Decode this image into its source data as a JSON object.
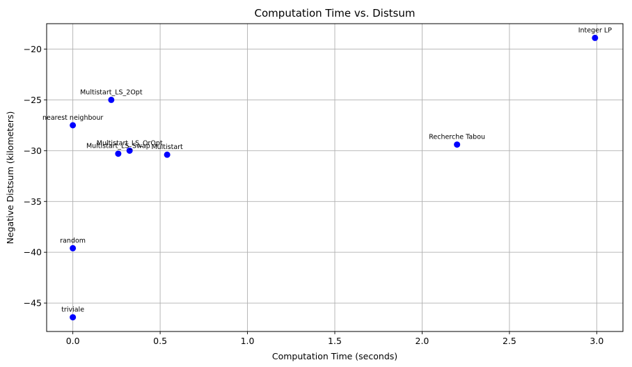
{
  "chart_data": {
    "type": "scatter",
    "title": "Computation Time vs. Distsum",
    "xlabel": "Computation Time (seconds)",
    "ylabel": "Negative Distsum (kilometers)",
    "xlim": [
      -0.15,
      3.15
    ],
    "ylim": [
      -47.8,
      -17.5
    ],
    "xticks": [
      0.0,
      0.5,
      1.0,
      1.5,
      2.0,
      2.5,
      3.0
    ],
    "xtick_labels": [
      "0.0",
      "0.5",
      "1.0",
      "1.5",
      "2.0",
      "2.5",
      "3.0"
    ],
    "yticks": [
      -45,
      -40,
      -35,
      -30,
      -25,
      -20
    ],
    "ytick_labels": [
      "−45",
      "−40",
      "−35",
      "−30",
      "−25",
      "−20"
    ],
    "grid": true,
    "marker_color": "#0000ff",
    "points": [
      {
        "label": "Integer LP",
        "x": 2.99,
        "y": -18.9
      },
      {
        "label": "Multistart_LS_2Opt",
        "x": 0.22,
        "y": -25.0
      },
      {
        "label": "nearest neighbour",
        "x": 0.0,
        "y": -27.5
      },
      {
        "label": "Recherche Tabou",
        "x": 2.2,
        "y": -29.4
      },
      {
        "label": "Multistart_LS_OrOpt",
        "x": 0.325,
        "y": -30.0
      },
      {
        "label": "Multistart_LS_Swap",
        "x": 0.26,
        "y": -30.3
      },
      {
        "label": "Multistart",
        "x": 0.54,
        "y": -30.4
      },
      {
        "label": "random",
        "x": 0.0,
        "y": -39.6
      },
      {
        "label": "triviale",
        "x": 0.0,
        "y": -46.4
      }
    ]
  }
}
